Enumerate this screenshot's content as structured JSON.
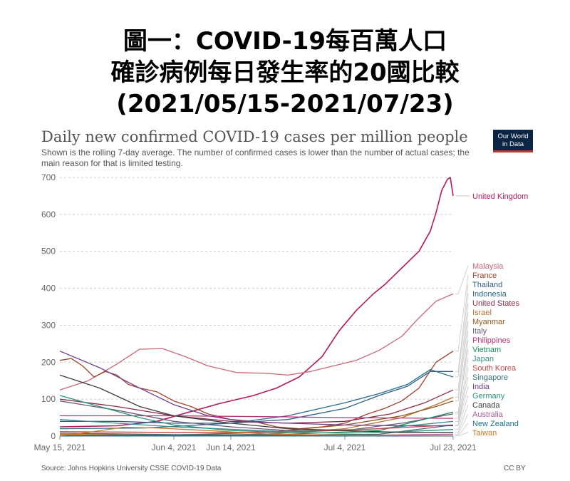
{
  "banner": {
    "line1": "圖一：COVID-19每百萬人口",
    "line2": "確診病例每日發生率的20國比較",
    "line3": "(2021/05/15-2021/07/23)"
  },
  "header": {
    "title": "Daily new confirmed COVID-19 cases per million people",
    "subtitle": "Shown is the rolling 7-day average. The number of confirmed cases is lower than the number of actual cases; the main reason for that is limited testing.",
    "logo_line1": "Our World",
    "logo_line2": "in Data"
  },
  "footer": {
    "source": "Source: Johns Hopkins University CSSE COVID-19 Data",
    "license": "CC BY"
  },
  "colors": {
    "grid": "#cccccc",
    "axis_text": "#666666",
    "connector": "#c8c8c8"
  },
  "chart_data": {
    "type": "line",
    "title": "Daily new confirmed COVID-19 cases per million people",
    "ylim": [
      0,
      700
    ],
    "y_ticks": [
      0,
      100,
      200,
      300,
      400,
      500,
      600,
      700
    ],
    "x_range": [
      "2021-05-15",
      "2021-07-23"
    ],
    "x_ticks": [
      {
        "date": "2021-05-15",
        "label": "May 15, 2021"
      },
      {
        "date": "2021-06-04",
        "label": "Jun 4, 2021"
      },
      {
        "date": "2021-06-14",
        "label": "Jun 14, 2021"
      },
      {
        "date": "2021-07-04",
        "label": "Jul 4, 2021"
      },
      {
        "date": "2021-07-23",
        "label": "Jul 23, 2021"
      }
    ],
    "grid": true,
    "legend": "right",
    "series": [
      {
        "name": "United Kingdom",
        "color": "#b4195f",
        "points": [
          [
            "2021-05-15",
            25
          ],
          [
            "2021-05-25",
            28
          ],
          [
            "2021-06-01",
            40
          ],
          [
            "2021-06-06",
            62
          ],
          [
            "2021-06-12",
            88
          ],
          [
            "2021-06-18",
            110
          ],
          [
            "2021-06-22",
            130
          ],
          [
            "2021-06-26",
            160
          ],
          [
            "2021-06-30",
            215
          ],
          [
            "2021-07-03",
            285
          ],
          [
            "2021-07-06",
            340
          ],
          [
            "2021-07-09",
            385
          ],
          [
            "2021-07-11",
            410
          ],
          [
            "2021-07-14",
            455
          ],
          [
            "2021-07-17",
            500
          ],
          [
            "2021-07-19",
            555
          ],
          [
            "2021-07-20",
            605
          ],
          [
            "2021-07-21",
            665
          ],
          [
            "2021-07-22",
            695
          ],
          [
            "2021-07-22T12",
            700
          ],
          [
            "2021-07-23",
            650
          ]
        ]
      },
      {
        "name": "Malaysia",
        "color": "#cc6677",
        "points": [
          [
            "2021-05-15",
            125
          ],
          [
            "2021-05-20",
            150
          ],
          [
            "2021-05-25",
            195
          ],
          [
            "2021-05-29",
            235
          ],
          [
            "2021-06-02",
            237
          ],
          [
            "2021-06-06",
            215
          ],
          [
            "2021-06-10",
            190
          ],
          [
            "2021-06-15",
            172
          ],
          [
            "2021-06-20",
            170
          ],
          [
            "2021-06-24",
            165
          ],
          [
            "2021-06-28",
            175
          ],
          [
            "2021-07-02",
            190
          ],
          [
            "2021-07-06",
            205
          ],
          [
            "2021-07-10",
            232
          ],
          [
            "2021-07-14",
            270
          ],
          [
            "2021-07-17",
            320
          ],
          [
            "2021-07-20",
            365
          ],
          [
            "2021-07-23",
            385
          ]
        ]
      },
      {
        "name": "France",
        "color": "#a0412d",
        "points": [
          [
            "2021-05-15",
            205
          ],
          [
            "2021-05-17",
            210
          ],
          [
            "2021-05-19",
            190
          ],
          [
            "2021-05-21",
            160
          ],
          [
            "2021-05-23",
            175
          ],
          [
            "2021-05-25",
            165
          ],
          [
            "2021-05-27",
            140
          ],
          [
            "2021-05-29",
            130
          ],
          [
            "2021-06-01",
            120
          ],
          [
            "2021-06-04",
            95
          ],
          [
            "2021-06-07",
            80
          ],
          [
            "2021-06-10",
            60
          ],
          [
            "2021-06-14",
            45
          ],
          [
            "2021-06-18",
            40
          ],
          [
            "2021-06-22",
            25
          ],
          [
            "2021-06-26",
            20
          ],
          [
            "2021-06-30",
            25
          ],
          [
            "2021-07-04",
            35
          ],
          [
            "2021-07-08",
            60
          ],
          [
            "2021-07-11",
            75
          ],
          [
            "2021-07-14",
            95
          ],
          [
            "2021-07-17",
            130
          ],
          [
            "2021-07-20",
            200
          ],
          [
            "2021-07-23",
            230
          ]
        ]
      },
      {
        "name": "Thailand",
        "color": "#2e5f82",
        "points": [
          [
            "2021-05-15",
            40
          ],
          [
            "2021-05-25",
            40
          ],
          [
            "2021-06-04",
            35
          ],
          [
            "2021-06-14",
            35
          ],
          [
            "2021-06-24",
            45
          ],
          [
            "2021-07-04",
            75
          ],
          [
            "2021-07-10",
            110
          ],
          [
            "2021-07-15",
            135
          ],
          [
            "2021-07-19",
            175
          ],
          [
            "2021-07-23",
            175
          ]
        ]
      },
      {
        "name": "Indonesia",
        "color": "#286b8c",
        "points": [
          [
            "2021-05-15",
            20
          ],
          [
            "2021-05-30",
            22
          ],
          [
            "2021-06-14",
            35
          ],
          [
            "2021-06-24",
            55
          ],
          [
            "2021-07-04",
            90
          ],
          [
            "2021-07-10",
            115
          ],
          [
            "2021-07-15",
            140
          ],
          [
            "2021-07-19",
            180
          ],
          [
            "2021-07-23",
            160
          ]
        ]
      },
      {
        "name": "United States",
        "color": "#8c2846",
        "points": [
          [
            "2021-05-15",
            100
          ],
          [
            "2021-05-25",
            80
          ],
          [
            "2021-06-04",
            55
          ],
          [
            "2021-06-14",
            40
          ],
          [
            "2021-06-24",
            35
          ],
          [
            "2021-07-04",
            40
          ],
          [
            "2021-07-12",
            60
          ],
          [
            "2021-07-18",
            90
          ],
          [
            "2021-07-23",
            125
          ]
        ]
      },
      {
        "name": "Israel",
        "color": "#c1702f",
        "points": [
          [
            "2021-05-15",
            5
          ],
          [
            "2021-06-04",
            2
          ],
          [
            "2021-06-20",
            5
          ],
          [
            "2021-07-04",
            20
          ],
          [
            "2021-07-14",
            50
          ],
          [
            "2021-07-20",
            85
          ],
          [
            "2021-07-23",
            105
          ]
        ]
      },
      {
        "name": "Myanmar",
        "color": "#8c5a1e",
        "points": [
          [
            "2021-05-15",
            2
          ],
          [
            "2021-06-04",
            3
          ],
          [
            "2021-06-20",
            10
          ],
          [
            "2021-07-04",
            30
          ],
          [
            "2021-07-14",
            55
          ],
          [
            "2021-07-20",
            80
          ],
          [
            "2021-07-23",
            95
          ]
        ]
      },
      {
        "name": "Italy",
        "color": "#6e5a7a",
        "points": [
          [
            "2021-05-15",
            95
          ],
          [
            "2021-05-25",
            70
          ],
          [
            "2021-06-04",
            40
          ],
          [
            "2021-06-14",
            25
          ],
          [
            "2021-06-24",
            15
          ],
          [
            "2021-07-04",
            15
          ],
          [
            "2021-07-14",
            35
          ],
          [
            "2021-07-23",
            60
          ]
        ]
      },
      {
        "name": "Philippines",
        "color": "#b2337a",
        "points": [
          [
            "2021-05-15",
            55
          ],
          [
            "2021-06-04",
            55
          ],
          [
            "2021-06-24",
            52
          ],
          [
            "2021-07-04",
            50
          ],
          [
            "2021-07-23",
            48
          ]
        ]
      },
      {
        "name": "Vietnam",
        "color": "#1e8c5a",
        "points": [
          [
            "2021-05-15",
            1
          ],
          [
            "2021-06-04",
            2
          ],
          [
            "2021-06-24",
            5
          ],
          [
            "2021-07-10",
            15
          ],
          [
            "2021-07-23",
            65
          ]
        ]
      },
      {
        "name": "Japan",
        "color": "#3c8c8c",
        "points": [
          [
            "2021-05-15",
            45
          ],
          [
            "2021-06-04",
            25
          ],
          [
            "2021-06-24",
            12
          ],
          [
            "2021-07-10",
            20
          ],
          [
            "2021-07-23",
            40
          ]
        ]
      },
      {
        "name": "South Korea",
        "color": "#c84646",
        "points": [
          [
            "2021-05-15",
            12
          ],
          [
            "2021-06-04",
            10
          ],
          [
            "2021-06-24",
            10
          ],
          [
            "2021-07-10",
            20
          ],
          [
            "2021-07-23",
            30
          ]
        ]
      },
      {
        "name": "Singapore",
        "color": "#3c6e78",
        "points": [
          [
            "2021-05-15",
            8
          ],
          [
            "2021-06-04",
            4
          ],
          [
            "2021-06-24",
            3
          ],
          [
            "2021-07-10",
            5
          ],
          [
            "2021-07-23",
            30
          ]
        ]
      },
      {
        "name": "India",
        "color": "#6e3c8c",
        "points": [
          [
            "2021-05-15",
            230
          ],
          [
            "2021-05-22",
            185
          ],
          [
            "2021-05-29",
            130
          ],
          [
            "2021-06-04",
            85
          ],
          [
            "2021-06-10",
            55
          ],
          [
            "2021-06-16",
            40
          ],
          [
            "2021-06-24",
            35
          ],
          [
            "2021-07-04",
            30
          ],
          [
            "2021-07-14",
            28
          ],
          [
            "2021-07-23",
            28
          ]
        ]
      },
      {
        "name": "Germany",
        "color": "#289678",
        "points": [
          [
            "2021-05-15",
            110
          ],
          [
            "2021-05-22",
            80
          ],
          [
            "2021-05-29",
            50
          ],
          [
            "2021-06-04",
            30
          ],
          [
            "2021-06-14",
            15
          ],
          [
            "2021-06-24",
            10
          ],
          [
            "2021-07-04",
            8
          ],
          [
            "2021-07-14",
            12
          ],
          [
            "2021-07-23",
            18
          ]
        ]
      },
      {
        "name": "Canada",
        "color": "#3c3c3c",
        "points": [
          [
            "2021-05-15",
            165
          ],
          [
            "2021-05-22",
            130
          ],
          [
            "2021-05-29",
            80
          ],
          [
            "2021-06-04",
            55
          ],
          [
            "2021-06-14",
            35
          ],
          [
            "2021-06-24",
            20
          ],
          [
            "2021-07-04",
            15
          ],
          [
            "2021-07-14",
            10
          ],
          [
            "2021-07-23",
            10
          ]
        ]
      },
      {
        "name": "Australia",
        "color": "#b05aa0",
        "points": [
          [
            "2021-05-15",
            0.5
          ],
          [
            "2021-06-14",
            1
          ],
          [
            "2021-07-04",
            2
          ],
          [
            "2021-07-23",
            5
          ]
        ]
      },
      {
        "name": "New Zealand",
        "color": "#1f6e8c",
        "points": [
          [
            "2021-05-15",
            0.5
          ],
          [
            "2021-06-14",
            0.5
          ],
          [
            "2021-07-04",
            0.5
          ],
          [
            "2021-07-23",
            0.5
          ]
        ]
      },
      {
        "name": "Taiwan",
        "color": "#c8781e",
        "points": [
          [
            "2021-05-15",
            1
          ],
          [
            "2021-05-20",
            10
          ],
          [
            "2021-05-26",
            24
          ],
          [
            "2021-06-01",
            22
          ],
          [
            "2021-06-10",
            15
          ],
          [
            "2021-06-20",
            6
          ],
          [
            "2021-07-04",
            2
          ],
          [
            "2021-07-23",
            1
          ]
        ]
      }
    ]
  }
}
